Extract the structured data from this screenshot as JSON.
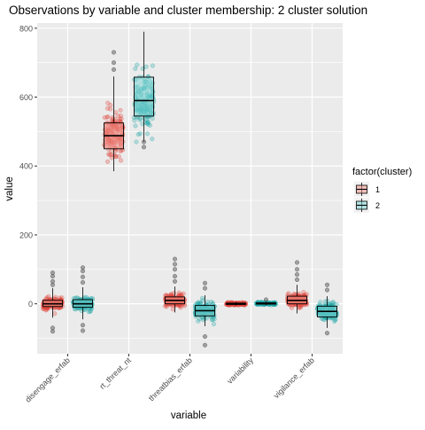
{
  "chart_data": {
    "type": "boxplot",
    "title": "Observations by variable and cluster membership: 2 cluster solution",
    "xlabel": "variable",
    "ylabel": "value",
    "ylim": [
      -145,
      815
    ],
    "yticks": [
      0,
      200,
      400,
      600,
      800
    ],
    "categories": [
      "disengage_erfab",
      "rt_threat_nt",
      "threatbias_erfab",
      "variability",
      "vigilance_erfab"
    ],
    "legend": {
      "title": "factor(cluster)",
      "position": "right",
      "entries": [
        "1",
        "2"
      ]
    },
    "colors": {
      "cluster1_fill": "#f1948a",
      "cluster1_point": "#e0443b",
      "cluster2_fill": "#7fd6d6",
      "cluster2_point": "#1fa6a6",
      "panel": "#ebebeb",
      "grid": "#ffffff",
      "outlier": "#555555"
    },
    "series": [
      {
        "name": "1",
        "boxes": [
          {
            "q1": -8,
            "median": 0,
            "q3": 10,
            "whisker_low": -40,
            "whisker_high": 45,
            "outliers": [
              -80,
              -70,
              55,
              65,
              80,
              90
            ]
          },
          {
            "q1": 450,
            "median": 488,
            "q3": 525,
            "whisker_low": 385,
            "whisker_high": 660,
            "outliers": [
              680,
              700,
              730
            ]
          },
          {
            "q1": 0,
            "median": 10,
            "q3": 20,
            "whisker_low": -25,
            "whisker_high": 50,
            "outliers": [
              65,
              80,
              100,
              115,
              130
            ]
          },
          {
            "q1": -2,
            "median": 0,
            "q3": 2,
            "whisker_low": -5,
            "whisker_high": 5,
            "outliers": []
          },
          {
            "q1": 0,
            "median": 10,
            "q3": 22,
            "whisker_low": -28,
            "whisker_high": 55,
            "outliers": [
              70,
              85,
              100,
              120
            ]
          }
        ]
      },
      {
        "name": "2",
        "boxes": [
          {
            "q1": -10,
            "median": 0,
            "q3": 12,
            "whisker_low": -45,
            "whisker_high": 48,
            "outliers": [
              -78,
              -62,
              62,
              78,
              95,
              105
            ]
          },
          {
            "q1": 545,
            "median": 590,
            "q3": 658,
            "whisker_low": 470,
            "whisker_high": 790,
            "outliers": [
              455,
              470
            ]
          },
          {
            "q1": -35,
            "median": -20,
            "q3": -5,
            "whisker_low": -65,
            "whisker_high": 25,
            "outliers": [
              -95,
              -120,
              45,
              60
            ]
          },
          {
            "q1": -1,
            "median": 1,
            "q3": 3,
            "whisker_low": -4,
            "whisker_high": 6,
            "outliers": [
              12
            ]
          },
          {
            "q1": -38,
            "median": -22,
            "q3": -7,
            "whisker_low": -70,
            "whisker_high": 22,
            "outliers": [
              -85,
              40,
              55
            ]
          }
        ]
      }
    ]
  }
}
